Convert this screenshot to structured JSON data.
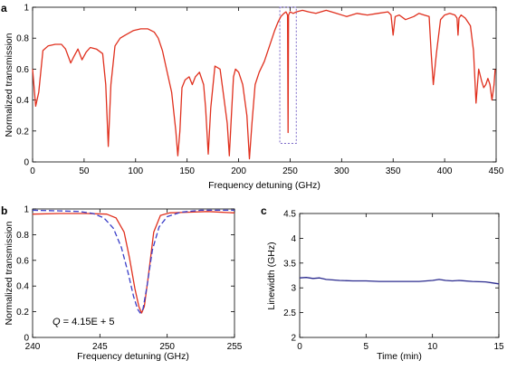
{
  "panels": [
    {
      "letter": "a"
    },
    {
      "letter": "b"
    },
    {
      "letter": "c"
    }
  ],
  "chart_data": [
    {
      "id": "a",
      "type": "line",
      "xlabel": "Frequency detuning (GHz)",
      "ylabel": "Normalized transmission",
      "xlim": [
        0,
        450
      ],
      "ylim": [
        0,
        1
      ],
      "xticks": [
        0,
        50,
        100,
        150,
        200,
        250,
        300,
        350,
        400,
        450
      ],
      "yticks": [
        0,
        0.2,
        0.4,
        0.6,
        0.8,
        1
      ],
      "yticklabels": [
        "0",
        "0.2",
        "0.4",
        "0.6",
        "0.8",
        "1"
      ],
      "series_color": "#e0301e",
      "highlight_box": {
        "x": [
          240,
          256
        ],
        "y": [
          0.12,
          1.0
        ],
        "color": "#7b68c8"
      },
      "series": [
        {
          "x": [
            0,
            3,
            6,
            10,
            15,
            22,
            28,
            32,
            37,
            40,
            44,
            48,
            52,
            56,
            62,
            68,
            71,
            73.5,
            76,
            80,
            85,
            90,
            98,
            105,
            112,
            118,
            122,
            126,
            130,
            135,
            139,
            141,
            143,
            145,
            148,
            152,
            155,
            158,
            162,
            166,
            168,
            170.5,
            173,
            177,
            182,
            185,
            189,
            191,
            193,
            195,
            197,
            200,
            204,
            208,
            210.5,
            213,
            216,
            220,
            225,
            230,
            235,
            238,
            241,
            244,
            246,
            247.5,
            248,
            248.5,
            250,
            253,
            256,
            262,
            268,
            275,
            285,
            295,
            305,
            315,
            325,
            335,
            345,
            348,
            350,
            352,
            356,
            362,
            370,
            375,
            380,
            385,
            387,
            389,
            392,
            396,
            400,
            405,
            410,
            412,
            413,
            414,
            416,
            420,
            425,
            428,
            430.5,
            433,
            436,
            438,
            440,
            442,
            444,
            446,
            448,
            449
          ],
          "y": [
            0.6,
            0.36,
            0.45,
            0.72,
            0.75,
            0.76,
            0.76,
            0.73,
            0.64,
            0.68,
            0.73,
            0.66,
            0.71,
            0.74,
            0.73,
            0.7,
            0.5,
            0.1,
            0.5,
            0.75,
            0.8,
            0.82,
            0.85,
            0.86,
            0.86,
            0.84,
            0.8,
            0.72,
            0.6,
            0.45,
            0.2,
            0.04,
            0.2,
            0.48,
            0.53,
            0.55,
            0.5,
            0.55,
            0.58,
            0.5,
            0.35,
            0.05,
            0.35,
            0.62,
            0.6,
            0.45,
            0.25,
            0.04,
            0.3,
            0.55,
            0.6,
            0.58,
            0.5,
            0.3,
            0.02,
            0.25,
            0.5,
            0.58,
            0.65,
            0.75,
            0.85,
            0.9,
            0.94,
            0.96,
            0.97,
            0.95,
            0.19,
            0.95,
            0.97,
            0.96,
            0.97,
            0.98,
            0.97,
            0.96,
            0.98,
            0.96,
            0.94,
            0.96,
            0.95,
            0.96,
            0.97,
            0.95,
            0.82,
            0.94,
            0.95,
            0.92,
            0.94,
            0.96,
            0.95,
            0.94,
            0.7,
            0.5,
            0.7,
            0.92,
            0.95,
            0.96,
            0.95,
            0.93,
            0.82,
            0.93,
            0.95,
            0.93,
            0.88,
            0.72,
            0.38,
            0.6,
            0.52,
            0.48,
            0.5,
            0.54,
            0.5,
            0.4,
            0.5,
            0.6
          ]
        }
      ]
    },
    {
      "id": "b",
      "type": "line",
      "xlabel": "Frequency detuning (GHz)",
      "ylabel": "Normalized transmission",
      "xlim": [
        240,
        255
      ],
      "ylim": [
        0,
        1
      ],
      "xticks": [
        240,
        245,
        250,
        255
      ],
      "yticks": [
        0,
        0.2,
        0.4,
        0.6,
        0.8,
        1
      ],
      "yticklabels": [
        "0",
        "0.2",
        "0.4",
        "0.6",
        "0.8",
        "1"
      ],
      "annotation": {
        "q_symbol": "Q",
        "q_value": " = 4.15E + 5"
      },
      "series": [
        {
          "style": "measured",
          "color": "#e0301e",
          "x": [
            240,
            242,
            244,
            245.5,
            246.2,
            246.8,
            247.2,
            247.6,
            247.9,
            248.1,
            248.3,
            248.6,
            249,
            249.5,
            250.2,
            251.5,
            253,
            255
          ],
          "y": [
            0.96,
            0.965,
            0.965,
            0.96,
            0.93,
            0.82,
            0.62,
            0.38,
            0.24,
            0.19,
            0.24,
            0.48,
            0.82,
            0.95,
            0.97,
            0.975,
            0.98,
            0.97
          ]
        },
        {
          "style": "fit",
          "color": "#3a3ec8",
          "x": [
            240,
            242,
            243.5,
            244.5,
            245.3,
            246,
            246.6,
            247.1,
            247.5,
            247.8,
            248,
            248.2,
            248.5,
            248.9,
            249.4,
            250,
            251,
            252.5,
            255
          ],
          "y": [
            0.99,
            0.985,
            0.98,
            0.965,
            0.93,
            0.85,
            0.7,
            0.5,
            0.32,
            0.22,
            0.19,
            0.22,
            0.4,
            0.68,
            0.86,
            0.94,
            0.975,
            0.99,
            0.99
          ]
        }
      ]
    },
    {
      "id": "c",
      "type": "line",
      "xlabel": "Time (min)",
      "ylabel": "Linewidth (GHz)",
      "xlim": [
        0,
        15
      ],
      "ylim": [
        2,
        4.5
      ],
      "xticks": [
        0,
        5,
        10,
        15
      ],
      "yticks": [
        2,
        2.5,
        3,
        3.5,
        4,
        4.5
      ],
      "yticklabels": [
        "2",
        "2.5",
        "3",
        "3.5",
        "4",
        "4.5"
      ],
      "series_color": "#2a2a8e",
      "series": [
        {
          "x": [
            0,
            0.5,
            1,
            1.5,
            2,
            3,
            4,
            5,
            6,
            7,
            8,
            9,
            10,
            10.5,
            11,
            11.5,
            12,
            13,
            14,
            14.5,
            15
          ],
          "y": [
            3.2,
            3.21,
            3.19,
            3.2,
            3.17,
            3.15,
            3.14,
            3.14,
            3.13,
            3.13,
            3.13,
            3.13,
            3.15,
            3.17,
            3.15,
            3.14,
            3.15,
            3.13,
            3.12,
            3.1,
            3.08
          ]
        }
      ]
    }
  ]
}
